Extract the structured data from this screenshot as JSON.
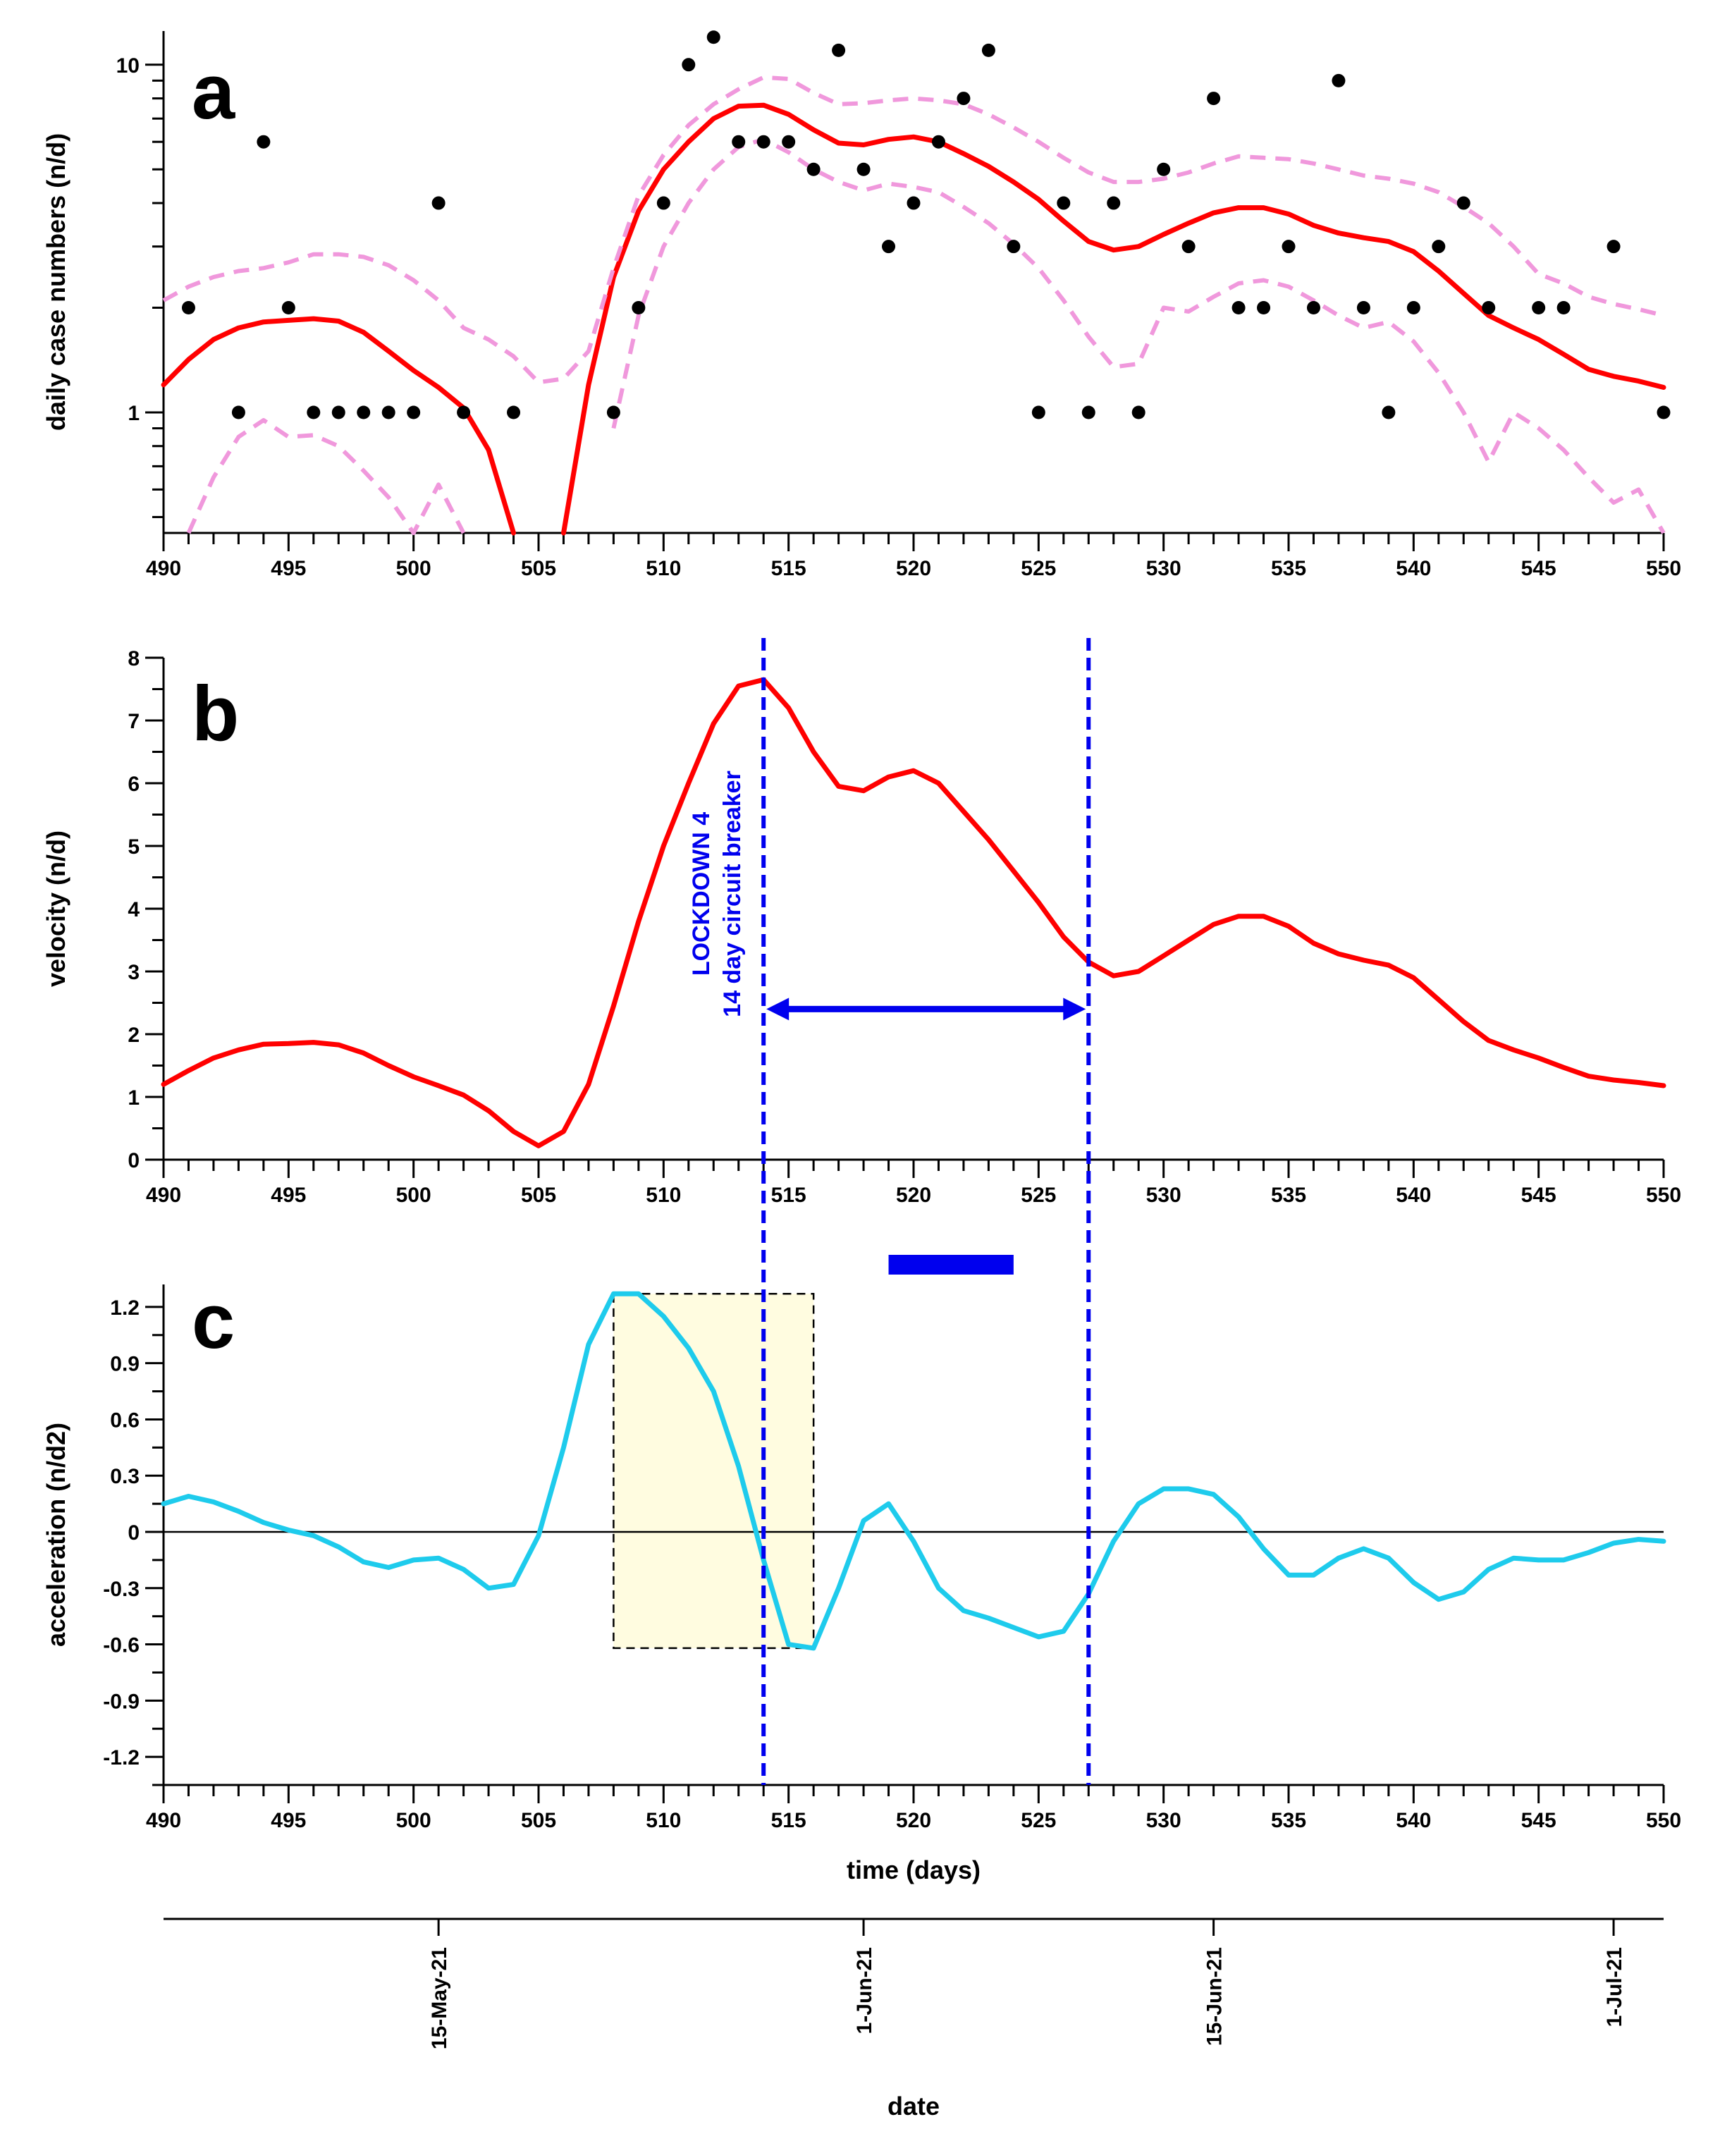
{
  "chart_data": [
    {
      "panel": "a",
      "type": "line",
      "title": "",
      "panel_label": "a",
      "xlabel": "",
      "ylabel": "daily case numbers (n/d)",
      "yscale": "log",
      "xlim": [
        490,
        550
      ],
      "ylim": [
        0.45,
        12.5
      ],
      "xticks": [
        490,
        495,
        500,
        505,
        510,
        515,
        520,
        525,
        530,
        535,
        540,
        545,
        550
      ],
      "yticks": [
        1,
        10
      ],
      "grid": false,
      "points": {
        "name": "daily cases",
        "color": "#000000",
        "x": [
          491,
          493,
          494,
          495,
          496,
          497,
          498,
          499,
          500,
          501,
          502,
          504,
          508,
          509,
          510,
          511,
          512,
          513,
          514,
          515,
          516,
          517,
          518,
          519,
          520,
          521,
          522,
          523,
          524,
          525,
          526,
          527,
          528,
          529,
          530,
          531,
          532,
          533,
          534,
          535,
          536,
          537,
          538,
          539,
          540,
          541,
          542,
          543,
          545,
          546,
          548,
          550
        ],
        "y": [
          2,
          1,
          6,
          2,
          1,
          1,
          1,
          1,
          1,
          4,
          1,
          1,
          1,
          2,
          4,
          10,
          12,
          6,
          6,
          6,
          5,
          11,
          5,
          3,
          4,
          6,
          8,
          11,
          3,
          1,
          4,
          1,
          4,
          1,
          5,
          3,
          8,
          2,
          2,
          3,
          2,
          9,
          2,
          1,
          2,
          3,
          4,
          2,
          2,
          2,
          3,
          1
        ]
      },
      "series": [
        {
          "name": "smoothed",
          "color": "#ff0000",
          "style": "solid",
          "x": [
            490,
            491,
            492,
            493,
            494,
            495,
            496,
            497,
            498,
            499,
            500,
            501,
            502,
            503,
            504,
            null,
            506,
            507,
            508,
            509,
            510,
            511,
            512,
            513,
            514,
            515,
            516,
            517,
            518,
            519,
            520,
            521,
            522,
            523,
            524,
            525,
            526,
            527,
            528,
            529,
            530,
            531,
            532,
            533,
            534,
            535,
            536,
            537,
            538,
            539,
            540,
            541,
            542,
            543,
            544,
            545,
            546,
            547,
            548,
            549,
            550
          ],
          "y": [
            1.2,
            1.42,
            1.62,
            1.75,
            1.82,
            1.84,
            1.86,
            1.83,
            1.7,
            1.5,
            1.32,
            1.18,
            1.03,
            0.78,
            0.45,
            null,
            0.45,
            1.2,
            2.45,
            3.8,
            5.0,
            6.0,
            7.0,
            7.6,
            7.65,
            7.2,
            6.5,
            5.95,
            5.88,
            6.1,
            6.2,
            6.0,
            5.55,
            5.1,
            4.6,
            4.1,
            3.55,
            3.1,
            2.93,
            3.0,
            3.25,
            3.5,
            3.75,
            3.88,
            3.88,
            3.72,
            3.45,
            3.28,
            3.18,
            3.1,
            2.9,
            2.55,
            2.2,
            1.9,
            1.75,
            1.62,
            1.47,
            1.33,
            1.27,
            1.23,
            1.18
          ]
        },
        {
          "name": "upper bound",
          "color": "#f098dc",
          "style": "dashed",
          "x": [
            490,
            491,
            492,
            493,
            494,
            495,
            496,
            497,
            498,
            499,
            500,
            501,
            502,
            503,
            504,
            505,
            506,
            507,
            508,
            509,
            510,
            511,
            512,
            513,
            514,
            515,
            516,
            517,
            518,
            519,
            520,
            521,
            522,
            523,
            524,
            525,
            526,
            527,
            528,
            529,
            530,
            531,
            532,
            533,
            534,
            535,
            536,
            537,
            538,
            539,
            540,
            541,
            542,
            543,
            544,
            545,
            546,
            547,
            548,
            549,
            550
          ],
          "y": [
            2.1,
            2.3,
            2.45,
            2.55,
            2.6,
            2.7,
            2.85,
            2.85,
            2.8,
            2.65,
            2.4,
            2.1,
            1.75,
            1.62,
            1.45,
            1.22,
            1.25,
            1.5,
            2.6,
            4.2,
            5.5,
            6.7,
            7.7,
            8.5,
            9.2,
            9.1,
            8.3,
            7.7,
            7.75,
            7.9,
            8.0,
            7.9,
            7.7,
            7.2,
            6.6,
            6.0,
            5.4,
            4.9,
            4.6,
            4.6,
            4.7,
            4.9,
            5.2,
            5.45,
            5.4,
            5.35,
            5.2,
            5.0,
            4.8,
            4.7,
            4.55,
            4.3,
            3.9,
            3.5,
            3.0,
            2.5,
            2.35,
            2.15,
            2.05,
            1.98,
            1.9
          ]
        },
        {
          "name": "lower bound",
          "color": "#f098dc",
          "style": "dashed",
          "x": [
            491,
            492,
            493,
            494,
            495,
            496,
            497,
            498,
            499,
            500,
            501,
            502,
            null,
            508,
            509,
            510,
            511,
            512,
            513,
            514,
            515,
            516,
            517,
            518,
            519,
            520,
            521,
            522,
            523,
            524,
            525,
            526,
            527,
            528,
            529,
            530,
            531,
            532,
            533,
            534,
            535,
            536,
            537,
            538,
            539,
            540,
            541,
            542,
            543,
            544,
            545,
            546,
            547,
            548,
            549,
            550
          ],
          "y": [
            0.45,
            0.65,
            0.85,
            0.95,
            0.85,
            0.86,
            0.8,
            0.68,
            0.57,
            0.45,
            0.62,
            0.45,
            null,
            0.9,
            1.9,
            3.0,
            4.0,
            5.0,
            5.8,
            6.1,
            5.6,
            5.0,
            4.6,
            4.35,
            4.55,
            4.45,
            4.3,
            3.9,
            3.5,
            3.05,
            2.6,
            2.1,
            1.65,
            1.35,
            1.38,
            2.0,
            1.95,
            2.15,
            2.35,
            2.4,
            2.3,
            2.1,
            1.9,
            1.75,
            1.82,
            1.6,
            1.3,
            1.0,
            0.72,
            1.0,
            0.9,
            0.78,
            0.65,
            0.55,
            0.6,
            0.45
          ]
        }
      ]
    },
    {
      "panel": "b",
      "type": "line",
      "title": "",
      "panel_label": "b",
      "xlabel": "",
      "ylabel": "velocity (n/d)",
      "xlim": [
        490,
        550
      ],
      "ylim": [
        0,
        8
      ],
      "xticks": [
        490,
        495,
        500,
        505,
        510,
        515,
        520,
        525,
        530,
        535,
        540,
        545,
        550
      ],
      "yticks": [
        0,
        1,
        2,
        3,
        4,
        5,
        6,
        7,
        8
      ],
      "grid": false,
      "series": [
        {
          "name": "velocity",
          "color": "#ff0000",
          "x": [
            490,
            491,
            492,
            493,
            494,
            495,
            496,
            497,
            498,
            499,
            500,
            501,
            502,
            503,
            504,
            505,
            506,
            507,
            508,
            509,
            510,
            511,
            512,
            513,
            514,
            515,
            516,
            517,
            518,
            519,
            520,
            521,
            522,
            523,
            524,
            525,
            526,
            527,
            528,
            529,
            530,
            531,
            532,
            533,
            534,
            535,
            536,
            537,
            538,
            539,
            540,
            541,
            542,
            543,
            544,
            545,
            546,
            547,
            548,
            549,
            550
          ],
          "y": [
            1.2,
            1.42,
            1.62,
            1.75,
            1.84,
            1.85,
            1.87,
            1.83,
            1.7,
            1.5,
            1.32,
            1.18,
            1.03,
            0.78,
            0.45,
            0.22,
            0.45,
            1.2,
            2.45,
            3.8,
            5.0,
            6.0,
            6.95,
            7.55,
            7.65,
            7.2,
            6.5,
            5.95,
            5.88,
            6.1,
            6.2,
            6.0,
            5.55,
            5.1,
            4.6,
            4.1,
            3.55,
            3.15,
            2.93,
            3.0,
            3.25,
            3.5,
            3.75,
            3.88,
            3.88,
            3.72,
            3.45,
            3.28,
            3.18,
            3.1,
            2.9,
            2.55,
            2.2,
            1.9,
            1.75,
            1.62,
            1.47,
            1.33,
            1.27,
            1.23,
            1.18
          ]
        }
      ],
      "annotations": {
        "lockdown_text_line1": "LOCKDOWN 4",
        "lockdown_text_line2": "14 day circuit breaker",
        "lockdown_start": 514,
        "lockdown_end": 527,
        "arrow_y": 2.4,
        "color": "#0000ee"
      }
    },
    {
      "panel": "c",
      "type": "line",
      "title": "",
      "panel_label": "c",
      "xlabel": "time (days)",
      "ylabel": "acceleration (n/d2)",
      "xlim": [
        490,
        550
      ],
      "ylim": [
        -1.35,
        1.32
      ],
      "xticks": [
        490,
        495,
        500,
        505,
        510,
        515,
        520,
        525,
        530,
        535,
        540,
        545,
        550
      ],
      "yticks": [
        -1.2,
        -0.9,
        -0.6,
        -0.3,
        0,
        0.3,
        0.6,
        0.9,
        1.2
      ],
      "ytick_labels": [
        "-1.2",
        "-0.9",
        "-0.6",
        "-0.3",
        "0",
        "0.3",
        "0.6",
        "0.9",
        "1.2"
      ],
      "grid": false,
      "zero_line": true,
      "series": [
        {
          "name": "acceleration",
          "color": "#1ecbec",
          "x": [
            490,
            491,
            492,
            493,
            494,
            495,
            496,
            497,
            498,
            499,
            500,
            501,
            502,
            503,
            504,
            505,
            506,
            507,
            508,
            509,
            510,
            511,
            512,
            513,
            514,
            515,
            516,
            517,
            518,
            519,
            520,
            521,
            522,
            523,
            524,
            525,
            526,
            527,
            528,
            529,
            530,
            531,
            532,
            533,
            534,
            535,
            536,
            537,
            538,
            539,
            540,
            541,
            542,
            543,
            544,
            545,
            546,
            547,
            548,
            549,
            550
          ],
          "y": [
            0.15,
            0.19,
            0.16,
            0.11,
            0.05,
            0.01,
            -0.02,
            -0.08,
            -0.16,
            -0.19,
            -0.15,
            -0.14,
            -0.2,
            -0.3,
            -0.28,
            -0.02,
            0.45,
            1.0,
            1.27,
            1.27,
            1.15,
            0.98,
            0.75,
            0.35,
            -0.15,
            -0.6,
            -0.62,
            -0.3,
            0.06,
            0.15,
            -0.05,
            -0.3,
            -0.42,
            -0.46,
            -0.51,
            -0.56,
            -0.53,
            -0.33,
            -0.05,
            0.15,
            0.23,
            0.23,
            0.2,
            0.08,
            -0.09,
            -0.23,
            -0.23,
            -0.14,
            -0.09,
            -0.14,
            -0.27,
            -0.36,
            -0.32,
            -0.2,
            -0.14,
            -0.15,
            -0.15,
            -0.11,
            -0.06,
            -0.04,
            -0.05
          ]
        }
      ],
      "shaded_box": {
        "x0": 508,
        "x1": 516,
        "y0": -0.62,
        "y1": 1.27,
        "fill": "#fffce0"
      },
      "lockdown_lines": [
        514,
        527
      ],
      "bar_marker": {
        "x0": 519,
        "x1": 524,
        "color": "#0000ee"
      }
    }
  ],
  "date_axis": {
    "label": "date",
    "ticks": [
      {
        "day": 501,
        "label": "15-May-21"
      },
      {
        "day": 518,
        "label": "1-Jun-21"
      },
      {
        "day": 532,
        "label": "15-Jun-21"
      },
      {
        "day": 548,
        "label": "1-Jul-21"
      }
    ]
  }
}
